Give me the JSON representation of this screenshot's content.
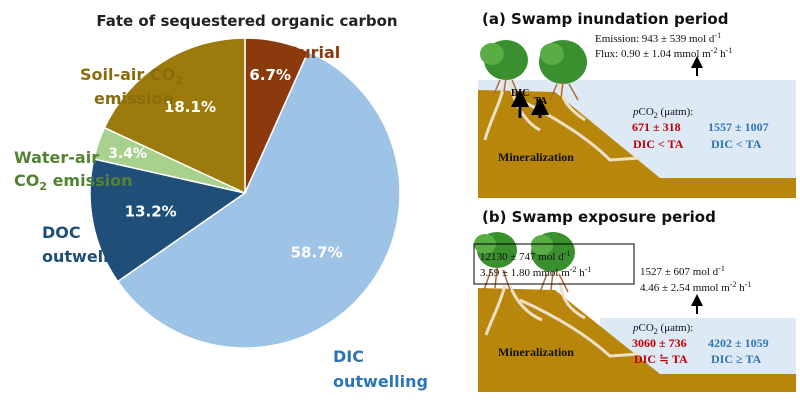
{
  "pie": {
    "title": "Fate of sequestered organic carbon",
    "slices": [
      {
        "key": "burial",
        "label": "Burial",
        "value": 6.7,
        "value_label": "6.7%",
        "color": "#8b3a0e",
        "label_color": "#8b3a0e"
      },
      {
        "key": "dic",
        "label_line1": "DIC",
        "label_line2": "outwelling",
        "value": 58.7,
        "value_label": "58.7%",
        "color": "#9dc3e6",
        "label_color": "#2e75b6"
      },
      {
        "key": "doc",
        "label_line1": "DOC",
        "label_line2": "outwelling",
        "value": 13.2,
        "value_label": "13.2%",
        "color": "#1f4e79",
        "label_color": "#1f4e79"
      },
      {
        "key": "water_air",
        "label_line1": "Water-air",
        "label_line2_pre": "CO",
        "label_line2_sub": "2",
        "label_line2_post": " emission",
        "value": 3.4,
        "value_label": "3.4%",
        "color": "#a9d18e",
        "label_color": "#548235"
      },
      {
        "key": "soil_air",
        "label_line1_pre": "Soil-air CO",
        "label_line1_sub": "2",
        "label_line2": "emission",
        "value": 18.1,
        "value_label": "18.1%",
        "color": "#9c7b0c",
        "label_color": "#8a6d0b"
      }
    ]
  },
  "panel_a": {
    "title": "(a) Swamp inundation period",
    "emission_line": "Emission: 943 ± 539 mol d",
    "emission_sup": "-1",
    "flux_line": "Flux: 0.90 ± 1.04 mmol m",
    "flux_sup1": "-2",
    "flux_mid": " h",
    "flux_sup2": "-1",
    "dic_label": "DIC",
    "ta_label": "TA",
    "pco2_label_italic": "p",
    "pco2_label_pre": "CO",
    "pco2_label_sub": "2",
    "pco2_label_post": " (μatm):",
    "left_value": "671 ± 318",
    "left_relation": "DIC < TA",
    "right_value": "1557 ± 1007",
    "right_relation": "DIC < TA",
    "mineralization": "Mineralization"
  },
  "panel_b": {
    "title": "(b) Swamp exposure period",
    "box_line1": "12130 ± 747 mol d",
    "box_line1_sup": "-1",
    "box_line2": "3.59 ± 1.80 mmol m",
    "box_line2_sup1": "-2",
    "box_line2_mid": " h",
    "box_line2_sup2": "-1",
    "right_line1": "1527 ± 607 mol d",
    "right_line1_sup": "-1",
    "right_line2": "4.46 ± 2.54 mmol m",
    "right_line2_sup1": "-2",
    "right_line2_mid": " h",
    "right_line2_sup2": "-1",
    "pco2_label_italic": "p",
    "pco2_label_pre": "CO",
    "pco2_label_sub": "2",
    "pco2_label_post": " (μatm):",
    "left_value": "3060 ± 736",
    "left_relation": "DIC ≒ TA",
    "right_value": "4202 ± 1059",
    "right_relation": "DIC ≥ TA",
    "mineralization": "Mineralization"
  },
  "colors": {
    "water": "#dde9f5",
    "soil": "#b8860b",
    "red": "#c00000",
    "blue": "#2e75b6",
    "tree_green": "#3a8f2e",
    "root": "#e8d8c0"
  }
}
